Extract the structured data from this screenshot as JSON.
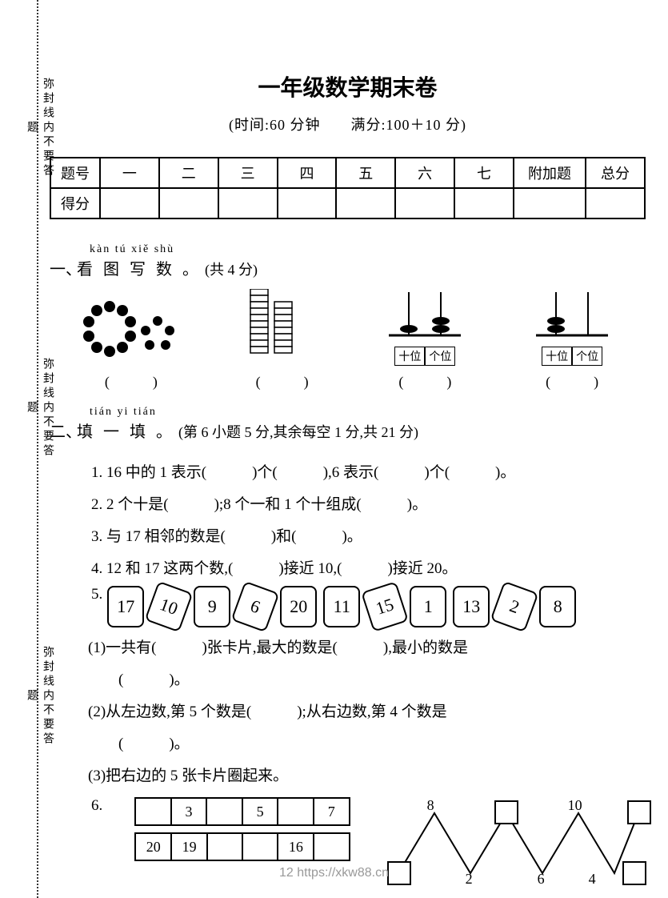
{
  "seal": {
    "text": "弥封线内不要答题"
  },
  "header": {
    "title": "一年级数学期末卷",
    "subtitle": "(时间:60 分钟　　满分:100＋10 分)"
  },
  "score_table": {
    "row1": [
      "题号",
      "一",
      "二",
      "三",
      "四",
      "五",
      "六",
      "七",
      "附加题",
      "总分"
    ],
    "row2_head": "得分"
  },
  "s1": {
    "pinyin": "kàn  tú  xiě  shù",
    "label": "一、",
    "main": "看 图 写 数 。",
    "note": "(共 4 分)",
    "paren": "(　　　)",
    "abacus": {
      "tens": "十位",
      "ones": "个位"
    }
  },
  "s2": {
    "pinyin": "tián  yi  tián",
    "label": "二、",
    "main": "填 一 填 。",
    "note": "(第 6 小题 5 分,其余每空 1 分,共 21 分)",
    "q1": "1. 16 中的 1 表示(　　　)个(　　　),6 表示(　　　)个(　　　)。",
    "q2": "2. 2 个十是(　　　);8 个一和 1 个十组成(　　　)。",
    "q3": "3. 与 17 相邻的数是(　　　)和(　　　)。",
    "q4": "4. 12 和 17 这两个数,(　　　)接近 10,(　　　)接近 20。",
    "q5": {
      "num": "5.",
      "cards": [
        "17",
        "10",
        "9",
        "6",
        "20",
        "11",
        "15",
        "1",
        "13",
        "2",
        "8"
      ],
      "rot": [
        false,
        true,
        false,
        true,
        false,
        false,
        true,
        false,
        false,
        true,
        false
      ],
      "s1": "(1)一共有(　　　)张卡片,最大的数是(　　　),最小的数是",
      "s1b": "(　　　)。",
      "s2": "(2)从左边数,第 5 个数是(　　　);从右边数,第 4 个数是",
      "s2b": "(　　　)。",
      "s3": "(3)把右边的 5 张卡片圈起来。"
    },
    "q6": {
      "num": "6.",
      "t1": [
        "",
        "3",
        "",
        "5",
        "",
        "7"
      ],
      "t2": [
        "20",
        "19",
        "",
        "",
        "16",
        ""
      ],
      "z_top": [
        "8",
        "10"
      ],
      "z_bot": [
        "2",
        "6",
        "4"
      ]
    }
  },
  "footer": "12 https://xkw88.cn",
  "colors": {
    "text": "#000000",
    "bg": "#ffffff",
    "footer": "#999999",
    "border": "#000000"
  }
}
